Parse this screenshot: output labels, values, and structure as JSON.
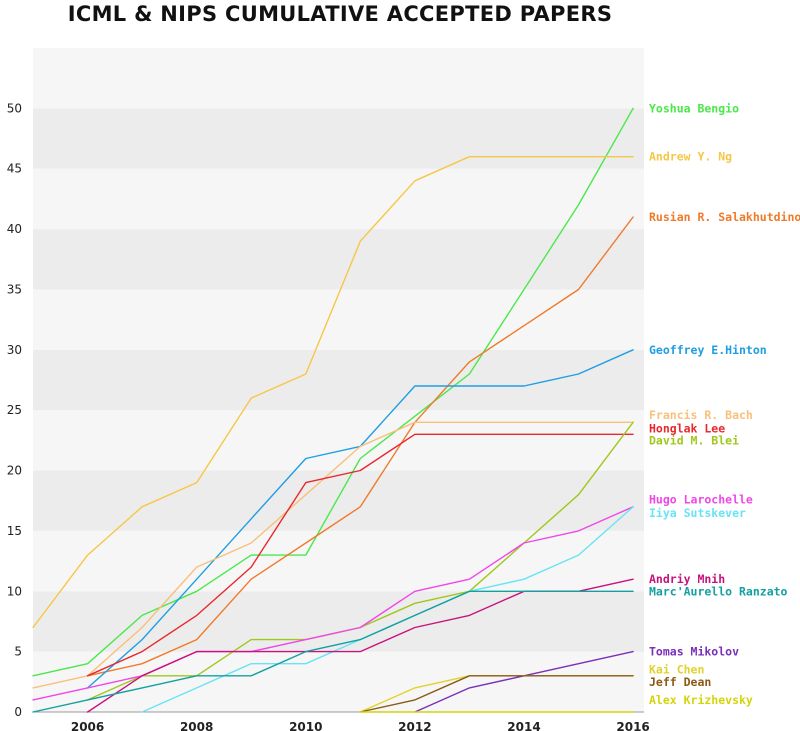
{
  "chart_data": {
    "type": "line",
    "title": "ICML & NIPS CUMULATIVE ACCEPTED PAPERS",
    "xlabel": "",
    "ylabel": "",
    "xlim": [
      2005,
      2016.2
    ],
    "ylim": [
      0,
      55
    ],
    "x_ticks": [
      "2006",
      "2008",
      "2010",
      "2012",
      "2014",
      "2016"
    ],
    "y_ticks": [
      "0",
      "5",
      "10",
      "15",
      "20",
      "25",
      "30",
      "35",
      "40",
      "45",
      "50"
    ],
    "grid": "alternating horizontal bands",
    "legend": "labels at right end of each line",
    "series": [
      {
        "name": "Yoshua Bengio",
        "color": "#4be84b",
        "points": [
          [
            2005,
            3
          ],
          [
            2006,
            4
          ],
          [
            2007,
            8
          ],
          [
            2008,
            10
          ],
          [
            2009,
            13
          ],
          [
            2010,
            13
          ],
          [
            2011,
            21
          ],
          [
            2012,
            24.5
          ],
          [
            2013,
            28
          ],
          [
            2014,
            35
          ],
          [
            2015,
            42
          ],
          [
            2016,
            50
          ]
        ]
      },
      {
        "name": "Andrew Y. Ng",
        "color": "#f6c746",
        "points": [
          [
            2005,
            7
          ],
          [
            2006,
            13
          ],
          [
            2007,
            17
          ],
          [
            2008,
            19
          ],
          [
            2009,
            26
          ],
          [
            2010,
            28
          ],
          [
            2011,
            39
          ],
          [
            2012,
            44
          ],
          [
            2013,
            46
          ],
          [
            2014,
            46
          ],
          [
            2015,
            46
          ],
          [
            2016,
            46
          ]
        ]
      },
      {
        "name": "Rusian R. Salakhutdinov",
        "color": "#f07a2a",
        "points": [
          [
            2006,
            3
          ],
          [
            2007,
            4
          ],
          [
            2008,
            6
          ],
          [
            2009,
            11
          ],
          [
            2010,
            14
          ],
          [
            2011,
            17
          ],
          [
            2012,
            24
          ],
          [
            2013,
            29
          ],
          [
            2014,
            32
          ],
          [
            2015,
            35
          ],
          [
            2016,
            41
          ]
        ]
      },
      {
        "name": "Geoffrey E.Hinton",
        "color": "#1e9ee3",
        "points": [
          [
            2006,
            2
          ],
          [
            2007,
            6
          ],
          [
            2008,
            11
          ],
          [
            2009,
            16
          ],
          [
            2010,
            21
          ],
          [
            2011,
            22
          ],
          [
            2012,
            27
          ],
          [
            2013,
            27
          ],
          [
            2014,
            27
          ],
          [
            2015,
            28
          ],
          [
            2016,
            30
          ]
        ]
      },
      {
        "name": "Francis R. Bach",
        "color": "#f9c07a",
        "points": [
          [
            2005,
            2
          ],
          [
            2006,
            3
          ],
          [
            2007,
            7
          ],
          [
            2008,
            12
          ],
          [
            2009,
            14
          ],
          [
            2010,
            18
          ],
          [
            2011,
            22
          ],
          [
            2012,
            24
          ],
          [
            2013,
            24
          ],
          [
            2014,
            24
          ],
          [
            2015,
            24
          ],
          [
            2016,
            24
          ]
        ]
      },
      {
        "name": "Honglak Lee",
        "color": "#e8282c",
        "points": [
          [
            2006,
            3
          ],
          [
            2007,
            5
          ],
          [
            2008,
            8
          ],
          [
            2009,
            12
          ],
          [
            2010,
            19
          ],
          [
            2011,
            20
          ],
          [
            2012,
            23
          ],
          [
            2013,
            23
          ],
          [
            2014,
            23
          ],
          [
            2015,
            23
          ],
          [
            2016,
            23
          ]
        ]
      },
      {
        "name": "David M. Blei",
        "color": "#9fc81c",
        "points": [
          [
            2006,
            1
          ],
          [
            2007,
            3
          ],
          [
            2008,
            3
          ],
          [
            2009,
            6
          ],
          [
            2010,
            6
          ],
          [
            2011,
            7
          ],
          [
            2012,
            9
          ],
          [
            2013,
            10
          ],
          [
            2014,
            14
          ],
          [
            2015,
            18
          ],
          [
            2016,
            24
          ]
        ]
      },
      {
        "name": "Hugo Larochelle",
        "color": "#f046e8",
        "points": [
          [
            2005,
            1
          ],
          [
            2006,
            2
          ],
          [
            2007,
            3
          ],
          [
            2008,
            5
          ],
          [
            2009,
            5
          ],
          [
            2010,
            6
          ],
          [
            2011,
            7
          ],
          [
            2012,
            10
          ],
          [
            2013,
            11
          ],
          [
            2014,
            14
          ],
          [
            2015,
            15
          ],
          [
            2016,
            17
          ]
        ]
      },
      {
        "name": "Ilya Sutskever",
        "color": "#68e4f4",
        "points": [
          [
            2007,
            0
          ],
          [
            2008,
            2
          ],
          [
            2009,
            4
          ],
          [
            2010,
            4
          ],
          [
            2011,
            6
          ],
          [
            2012,
            8
          ],
          [
            2013,
            10
          ],
          [
            2014,
            11
          ],
          [
            2015,
            13
          ],
          [
            2016,
            17
          ]
        ]
      },
      {
        "name": "Andriy Mnih",
        "color": "#c8127e",
        "points": [
          [
            2006,
            0
          ],
          [
            2007,
            3
          ],
          [
            2008,
            5
          ],
          [
            2009,
            5
          ],
          [
            2010,
            5
          ],
          [
            2011,
            5
          ],
          [
            2012,
            7
          ],
          [
            2013,
            8
          ],
          [
            2014,
            10
          ],
          [
            2015,
            10
          ],
          [
            2016,
            11
          ]
        ]
      },
      {
        "name": "Marc'Aurello Ranzato",
        "color": "#14a0a0",
        "points": [
          [
            2005,
            0
          ],
          [
            2006,
            1
          ],
          [
            2007,
            2
          ],
          [
            2008,
            3
          ],
          [
            2009,
            3
          ],
          [
            2010,
            5
          ],
          [
            2011,
            6
          ],
          [
            2012,
            8
          ],
          [
            2013,
            10
          ],
          [
            2014,
            10
          ],
          [
            2015,
            10
          ],
          [
            2016,
            10
          ]
        ]
      },
      {
        "name": "Tomas Mikolov",
        "color": "#7b2fb8",
        "points": [
          [
            2012,
            0
          ],
          [
            2013,
            2
          ],
          [
            2014,
            3
          ],
          [
            2015,
            4
          ],
          [
            2016,
            5
          ]
        ]
      },
      {
        "name": "Kai Chen",
        "color": "#e3d22c",
        "points": [
          [
            2011,
            0
          ],
          [
            2012,
            2
          ],
          [
            2013,
            3
          ],
          [
            2014,
            3
          ],
          [
            2015,
            3
          ],
          [
            2016,
            3
          ]
        ]
      },
      {
        "name": "Jeff Dean",
        "color": "#8a5a14",
        "points": [
          [
            2011,
            0
          ],
          [
            2012,
            1
          ],
          [
            2013,
            3
          ],
          [
            2014,
            3
          ],
          [
            2015,
            3
          ],
          [
            2016,
            3
          ]
        ]
      },
      {
        "name": "Alex Krizhevsky",
        "color": "#d4d40c",
        "points": [
          [
            2011,
            0
          ],
          [
            2016,
            0
          ]
        ]
      }
    ],
    "labels": [
      {
        "name": "Yoshua Bengio",
        "color": "#4be84b",
        "at": 50
      },
      {
        "name": "Andrew Y. Ng",
        "color": "#f6c746",
        "at": 46
      },
      {
        "name": "Rusian R. Salakhutdinov",
        "color": "#f07a2a",
        "at": 41
      },
      {
        "name": "Geoffrey E.Hinton",
        "color": "#1e9ee3",
        "at": 30
      },
      {
        "name": "Francis R. Bach",
        "color": "#f9c07a",
        "at": 24.6
      },
      {
        "name": "Honglak Lee",
        "color": "#e8282c",
        "at": 23.5
      },
      {
        "name": "David M. Blei",
        "color": "#9fc81c",
        "at": 22.5
      },
      {
        "name": "Hugo Larochelle",
        "color": "#f046e8",
        "at": 17.6
      },
      {
        "name": "Iiya Sutskever",
        "color": "#68e4f4",
        "at": 16.5
      },
      {
        "name": "Andriy Mnih",
        "color": "#c8127e",
        "at": 11
      },
      {
        "name": "Marc'Aurello Ranzato",
        "color": "#14a0a0",
        "at": 10
      },
      {
        "name": "Tomas Mikolov",
        "color": "#7b2fb8",
        "at": 5
      },
      {
        "name": "Kai Chen",
        "color": "#e3d22c",
        "at": 3.5
      },
      {
        "name": "Jeff Dean",
        "color": "#8a5a14",
        "at": 2.5
      },
      {
        "name": "Alex Krizhevsky",
        "color": "#d4d40c",
        "at": 1
      }
    ]
  }
}
